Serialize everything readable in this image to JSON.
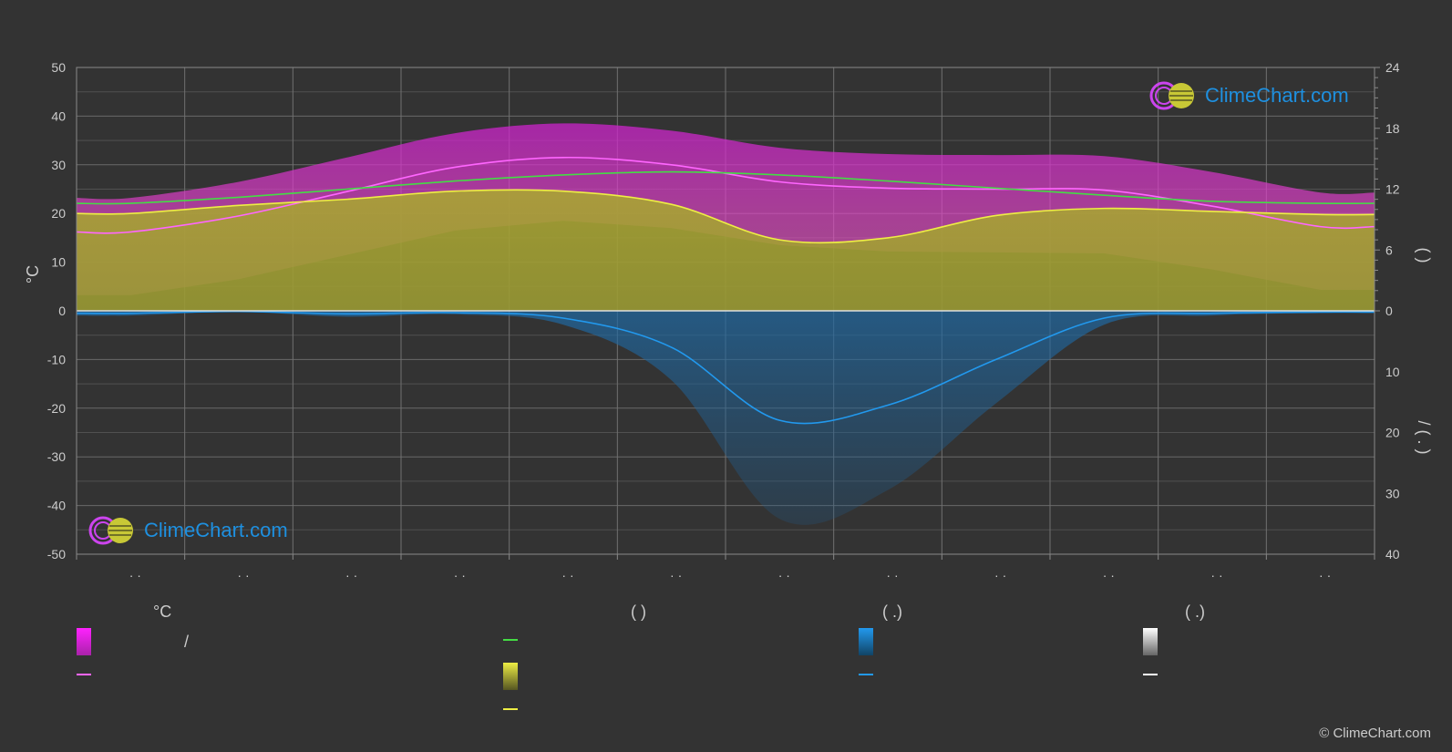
{
  "chart_data": {
    "type": "area",
    "title": "",
    "categories": [
      "· ·",
      "· ·",
      "· ·",
      "· ·",
      "· ·",
      "· ·",
      "· ·",
      "· ·",
      "· ·",
      "· ·",
      "· ·",
      "· ·"
    ],
    "left_axis": {
      "label": "°C",
      "ylim": [
        -50,
        50
      ],
      "ticks": [
        50,
        40,
        30,
        20,
        10,
        0,
        -10,
        -20,
        -30,
        -40,
        -50
      ]
    },
    "right_axis_top": {
      "label": "(   )",
      "ylim": [
        0,
        24
      ],
      "ticks": [
        24,
        18,
        12,
        6,
        0
      ]
    },
    "right_axis_bottom": {
      "label": "/  (   .  )",
      "ylim": [
        0,
        40
      ],
      "ticks": [
        0,
        10,
        20,
        30,
        40
      ]
    },
    "grid": true,
    "series": [
      {
        "key": "max_temp",
        "values": [
          16.2,
          19.5,
          24.5,
          29.5,
          31.5,
          30.0,
          26.5,
          25.2,
          25.0,
          24.8,
          21.5,
          17.3
        ],
        "color": "#ff66ff",
        "axis": "left"
      },
      {
        "key": "daylight",
        "values": [
          10.6,
          11.2,
          12.0,
          12.8,
          13.4,
          13.7,
          13.4,
          12.8,
          12.1,
          11.4,
          10.8,
          10.6
        ],
        "color": "#44dd44",
        "axis": "right_top"
      },
      {
        "key": "sunshine",
        "values": [
          9.6,
          10.4,
          11.0,
          11.8,
          11.8,
          10.5,
          7.0,
          7.2,
          9.4,
          10.1,
          9.8,
          9.5
        ],
        "color": "#eeee44",
        "axis": "right_top"
      },
      {
        "key": "precipitation",
        "values": [
          0.4,
          0.1,
          0.5,
          0.3,
          1.2,
          6.0,
          18.0,
          15.5,
          8.0,
          1.2,
          0.4,
          0.2
        ],
        "color": "#2299ee",
        "axis": "right_bottom"
      }
    ]
  },
  "legend": {
    "columns": [
      {
        "head": "°C",
        "rows": [
          {
            "kind": "box",
            "gradient": [
              "#ff22ff",
              "#aa22aa"
            ],
            "label": "/"
          },
          {
            "kind": "line",
            "color": "#ff66ff",
            "label": ""
          }
        ]
      },
      {
        "head": "(          )",
        "rows": [
          {
            "kind": "line",
            "color": "#44dd44",
            "label": ""
          },
          {
            "kind": "box",
            "gradient": [
              "#eeee44",
              "#555522"
            ],
            "label": ""
          },
          {
            "kind": "line",
            "color": "#eeee44",
            "label": ""
          }
        ]
      },
      {
        "head": "(   .)",
        "rows": [
          {
            "kind": "box",
            "gradient": [
              "#2299ee",
              "#114466"
            ],
            "label": ""
          },
          {
            "kind": "line",
            "color": "#2299ee",
            "label": ""
          }
        ]
      },
      {
        "head": "(   .)",
        "rows": [
          {
            "kind": "box",
            "gradient": [
              "#ffffff",
              "#666666"
            ],
            "label": ""
          },
          {
            "kind": "line",
            "color": "#ffffff",
            "label": ""
          }
        ]
      }
    ]
  },
  "logo": {
    "text": "ClimeChart.com"
  },
  "copyright": "© ClimeChart.com"
}
